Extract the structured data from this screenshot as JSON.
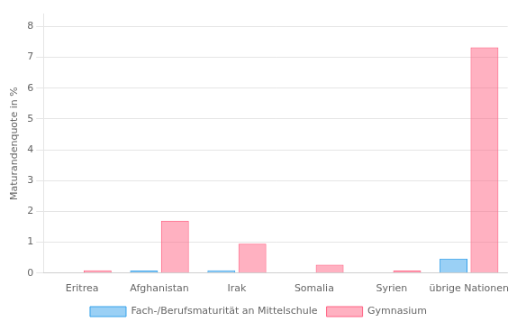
{
  "chart_data": {
    "type": "bar",
    "categories": [
      "Eritrea",
      "Afghanistan",
      "Irak",
      "Somalia",
      "Syrien",
      "übrige Nationen"
    ],
    "series": [
      {
        "name": "Fach-/Berufsmaturität an Mittelschule",
        "values": [
          0.0,
          0.08,
          0.09,
          0.0,
          0.0,
          0.47
        ]
      },
      {
        "name": "Gymnasium",
        "values": [
          0.09,
          1.7,
          0.95,
          0.27,
          0.08,
          7.32
        ]
      }
    ],
    "ylabel": "Maturandenquote in %",
    "ylim": [
      0,
      8.4
    ],
    "yticks": [
      0,
      1,
      2,
      3,
      4,
      5,
      6,
      7,
      8
    ],
    "grid": true,
    "legend": "bottom"
  }
}
